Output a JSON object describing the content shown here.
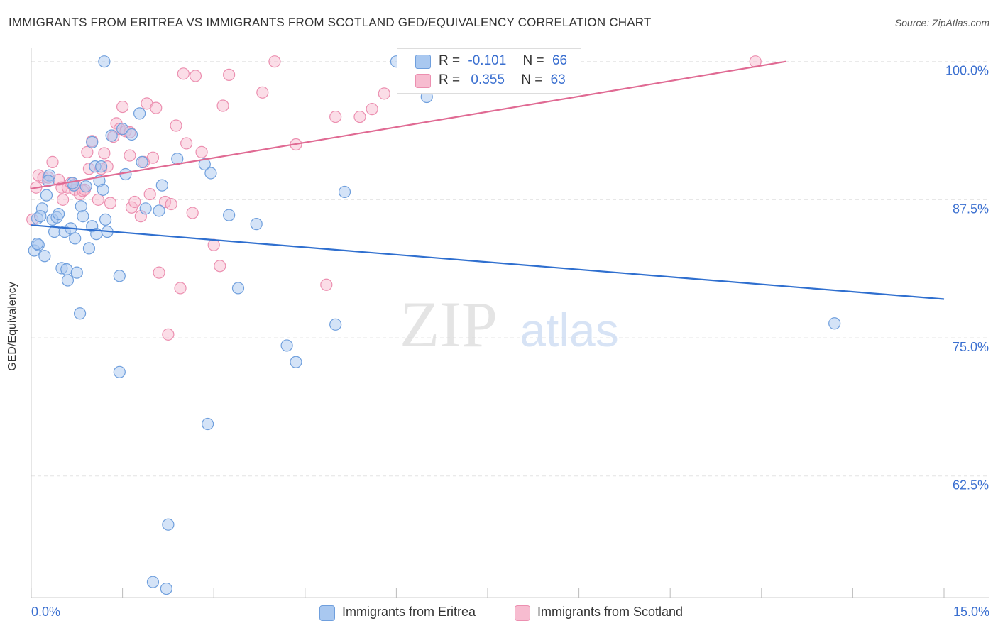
{
  "title": "IMMIGRANTS FROM ERITREA VS IMMIGRANTS FROM SCOTLAND GED/EQUIVALENCY CORRELATION CHART",
  "source": "Source: ZipAtlas.com",
  "watermark": {
    "zip": "ZIP",
    "atlas": "atlas"
  },
  "colors": {
    "eritrea_fill": "#a9c8f0",
    "eritrea_stroke": "#6f9fdd",
    "eritrea_line": "#2f6fcf",
    "scotland_fill": "#f7bcd0",
    "scotland_stroke": "#ec8fb0",
    "scotland_line": "#e06a93",
    "tick_label": "#3a6fd0",
    "grid": "#e4e4e4"
  },
  "legend": {
    "eritrea": {
      "r_label": "R =",
      "r_value": "-0.101",
      "n_label": "N =",
      "n_value": "66"
    },
    "scotland": {
      "r_label": "R =",
      "r_value": "0.355",
      "n_label": "N =",
      "n_value": "63"
    }
  },
  "bottom_legend": {
    "eritrea": "Immigrants from Eritrea",
    "scotland": "Immigrants from Scotland"
  },
  "chart_data": {
    "type": "scatter",
    "title": "IMMIGRANTS FROM ERITREA VS IMMIGRANTS FROM SCOTLAND GED/EQUIVALENCY CORRELATION CHART",
    "xlabel": "",
    "ylabel": "GED/Equivalency",
    "xlim": [
      0,
      15
    ],
    "ylim": [
      51.5,
      101.2
    ],
    "x_tick_labels": [
      "0.0%",
      "15.0%"
    ],
    "y_ticks": [
      62.5,
      75.0,
      87.5,
      100.0
    ],
    "y_tick_labels": [
      "62.5%",
      "75.0%",
      "87.5%",
      "100.0%"
    ],
    "series": [
      {
        "name": "Immigrants from Eritrea",
        "trend": {
          "x": [
            0,
            15
          ],
          "y": [
            85.2,
            78.5
          ]
        },
        "points": [
          [
            0.05,
            82.9
          ],
          [
            0.1,
            85.8
          ],
          [
            0.12,
            83.4
          ],
          [
            0.18,
            86.7
          ],
          [
            0.22,
            82.4
          ],
          [
            0.25,
            87.9
          ],
          [
            0.3,
            89.7
          ],
          [
            0.35,
            85.7
          ],
          [
            0.38,
            84.6
          ],
          [
            0.42,
            85.9
          ],
          [
            0.45,
            86.2
          ],
          [
            0.5,
            81.3
          ],
          [
            0.55,
            84.6
          ],
          [
            0.58,
            81.2
          ],
          [
            0.6,
            80.2
          ],
          [
            0.65,
            84.9
          ],
          [
            0.7,
            88.8
          ],
          [
            0.72,
            84.0
          ],
          [
            0.75,
            80.9
          ],
          [
            0.8,
            77.2
          ],
          [
            0.82,
            86.9
          ],
          [
            0.85,
            86.0
          ],
          [
            0.9,
            88.7
          ],
          [
            0.95,
            83.1
          ],
          [
            1.0,
            85.1
          ],
          [
            1.0,
            92.7
          ],
          [
            1.05,
            90.5
          ],
          [
            1.07,
            84.4
          ],
          [
            1.12,
            89.2
          ],
          [
            1.15,
            90.5
          ],
          [
            1.18,
            88.4
          ],
          [
            1.2,
            100.0
          ],
          [
            1.22,
            85.7
          ],
          [
            1.25,
            84.6
          ],
          [
            1.32,
            93.3
          ],
          [
            1.45,
            80.6
          ],
          [
            1.45,
            71.9
          ],
          [
            1.5,
            93.9
          ],
          [
            1.55,
            89.8
          ],
          [
            1.65,
            93.4
          ],
          [
            1.78,
            95.3
          ],
          [
            1.82,
            90.9
          ],
          [
            1.88,
            86.7
          ],
          [
            2.1,
            86.5
          ],
          [
            2.15,
            88.8
          ],
          [
            2.25,
            58.1
          ],
          [
            2.0,
            52.9
          ],
          [
            2.22,
            52.3
          ],
          [
            2.4,
            91.2
          ],
          [
            2.85,
            90.7
          ],
          [
            2.9,
            67.2
          ],
          [
            2.95,
            89.9
          ],
          [
            3.25,
            86.1
          ],
          [
            3.4,
            79.5
          ],
          [
            3.7,
            85.3
          ],
          [
            4.2,
            74.3
          ],
          [
            4.35,
            72.8
          ],
          [
            5.0,
            76.2
          ],
          [
            5.15,
            88.2
          ],
          [
            6.0,
            100.0
          ],
          [
            6.5,
            96.8
          ],
          [
            13.2,
            76.3
          ],
          [
            0.1,
            83.5
          ],
          [
            0.15,
            86.0
          ],
          [
            0.28,
            89.2
          ],
          [
            0.68,
            89.0
          ]
        ]
      },
      {
        "name": "Immigrants from Scotland",
        "trend": {
          "x": [
            0,
            12.4
          ],
          "y": [
            88.5,
            100.0
          ]
        },
        "points": [
          [
            0.02,
            85.7
          ],
          [
            0.08,
            88.6
          ],
          [
            0.12,
            89.7
          ],
          [
            0.2,
            89.5
          ],
          [
            0.28,
            89.5
          ],
          [
            0.35,
            90.9
          ],
          [
            0.45,
            89.3
          ],
          [
            0.5,
            88.6
          ],
          [
            0.52,
            87.5
          ],
          [
            0.6,
            88.6
          ],
          [
            0.65,
            89.0
          ],
          [
            0.72,
            88.4
          ],
          [
            0.75,
            88.7
          ],
          [
            0.8,
            88.0
          ],
          [
            0.85,
            88.3
          ],
          [
            0.88,
            88.4
          ],
          [
            0.92,
            91.8
          ],
          [
            0.95,
            90.3
          ],
          [
            1.0,
            92.8
          ],
          [
            1.1,
            87.5
          ],
          [
            1.15,
            90.3
          ],
          [
            1.2,
            91.7
          ],
          [
            1.25,
            90.5
          ],
          [
            1.3,
            87.2
          ],
          [
            1.35,
            93.2
          ],
          [
            1.4,
            94.4
          ],
          [
            1.45,
            93.9
          ],
          [
            1.5,
            95.9
          ],
          [
            1.55,
            93.7
          ],
          [
            1.62,
            93.6
          ],
          [
            1.62,
            91.5
          ],
          [
            1.65,
            86.8
          ],
          [
            1.7,
            87.3
          ],
          [
            1.8,
            86.0
          ],
          [
            1.85,
            90.9
          ],
          [
            1.9,
            96.2
          ],
          [
            1.95,
            88.0
          ],
          [
            2.0,
            91.3
          ],
          [
            2.05,
            95.8
          ],
          [
            2.1,
            80.9
          ],
          [
            2.2,
            87.3
          ],
          [
            2.25,
            75.3
          ],
          [
            2.3,
            87.1
          ],
          [
            2.38,
            94.2
          ],
          [
            2.45,
            79.5
          ],
          [
            2.5,
            98.9
          ],
          [
            2.55,
            92.6
          ],
          [
            2.65,
            86.3
          ],
          [
            2.7,
            98.7
          ],
          [
            2.8,
            91.8
          ],
          [
            3.0,
            83.4
          ],
          [
            3.1,
            81.5
          ],
          [
            3.15,
            96.0
          ],
          [
            3.25,
            98.8
          ],
          [
            4.0,
            100.0
          ],
          [
            4.35,
            92.5
          ],
          [
            4.85,
            79.8
          ],
          [
            5.0,
            95.0
          ],
          [
            5.4,
            95.0
          ],
          [
            5.6,
            95.7
          ],
          [
            5.8,
            97.1
          ],
          [
            11.9,
            100.0
          ],
          [
            3.8,
            97.2
          ]
        ]
      }
    ]
  }
}
